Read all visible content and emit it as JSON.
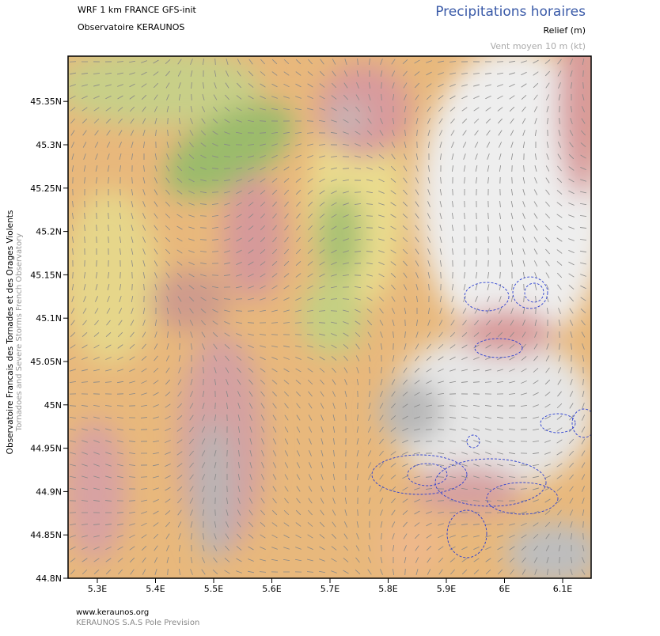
{
  "header": {
    "model": "WRF 1 km FRANCE  GFS-init",
    "source": "Observatoire KERAUNOS",
    "title": "Precipitations horaires",
    "subtitle": "Relief (m)",
    "wind": "Vent moyen 10 m (kt)"
  },
  "side": {
    "main": "Observatoire Francais des Tornades et des Orages Violents",
    "sub": "Tornadoes and Severe Storms French Observatory"
  },
  "axes": {
    "lat": [
      "44.8N",
      "44.85N",
      "44.9N",
      "44.95N",
      "45N",
      "45.05N",
      "45.1N",
      "45.15N",
      "45.2N",
      "45.25N",
      "45.3N",
      "45.35N"
    ],
    "lon": [
      "5.3E",
      "5.4E",
      "5.5E",
      "5.6E",
      "5.7E",
      "5.8E",
      "5.9E",
      "6E",
      "6.1E"
    ]
  },
  "footer": {
    "url": "www.keraunos.org",
    "company": "KERAUNOS S.A.S Pole Prevision"
  }
}
